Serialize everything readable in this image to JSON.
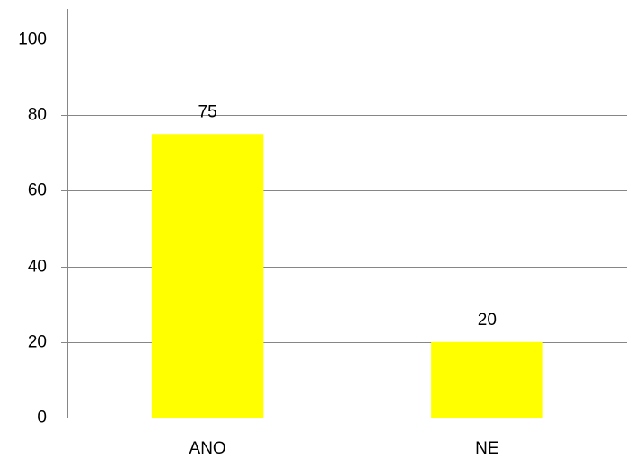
{
  "chart_data": {
    "type": "bar",
    "categories": [
      "ANO",
      "NE"
    ],
    "values": [
      75,
      20
    ],
    "color": "#ffff00",
    "ylim": [
      0,
      100
    ],
    "yticks": [
      0,
      20,
      40,
      60,
      80,
      100
    ],
    "grid": true,
    "data_labels": true
  }
}
